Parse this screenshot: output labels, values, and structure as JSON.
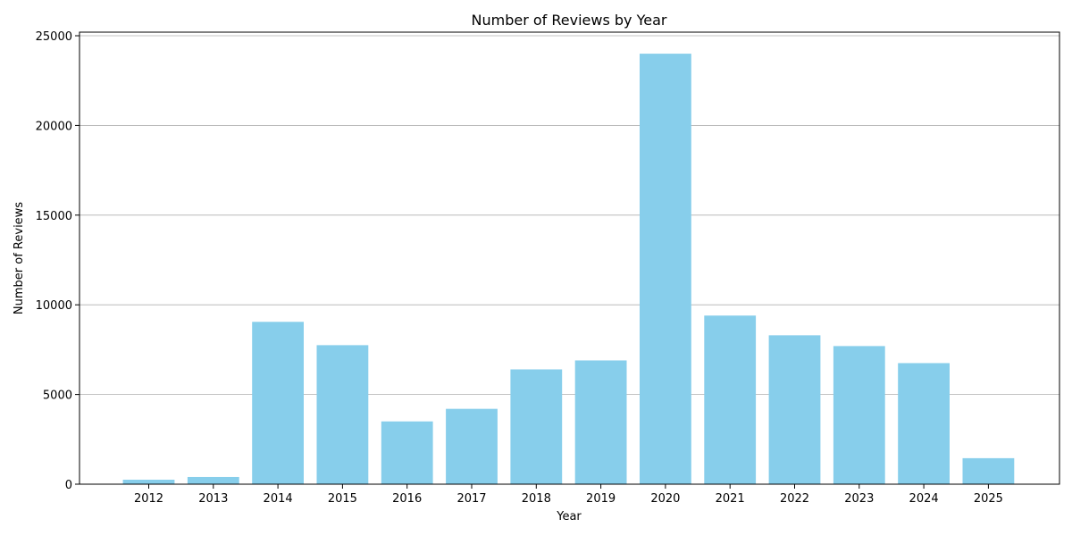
{
  "chart_data": {
    "type": "bar",
    "title": "Number of Reviews by Year",
    "xlabel": "Year",
    "ylabel": "Number of Reviews",
    "categories": [
      "2012",
      "2013",
      "2014",
      "2015",
      "2016",
      "2017",
      "2018",
      "2019",
      "2020",
      "2021",
      "2022",
      "2023",
      "2024",
      "2025"
    ],
    "values": [
      250,
      400,
      9050,
      7750,
      3500,
      4200,
      6400,
      6900,
      24000,
      9400,
      8300,
      7700,
      6750,
      1450
    ],
    "ylim": [
      0,
      25200
    ],
    "yticks": [
      0,
      5000,
      10000,
      15000,
      20000,
      25000
    ],
    "ytick_labels": [
      "0",
      "5000",
      "10000",
      "15000",
      "20000",
      "25000"
    ],
    "grid": "y",
    "bar_color": "#87CEEB",
    "legend": "none"
  }
}
